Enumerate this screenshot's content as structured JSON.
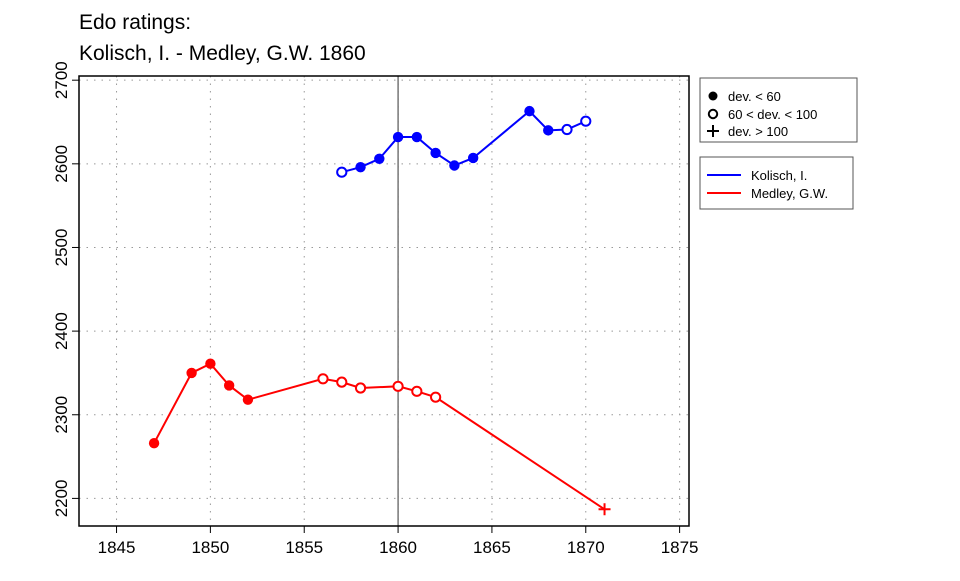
{
  "chart_data": {
    "type": "line",
    "title": [
      "Edo ratings:",
      "Kolisch, I. - Medley, G.W. 1860"
    ],
    "xlabel": "",
    "ylabel": "",
    "xlim": [
      1843,
      1875.5
    ],
    "ylim": [
      2167,
      2705
    ],
    "xticks": [
      1845,
      1850,
      1855,
      1860,
      1865,
      1870,
      1875
    ],
    "yticks": [
      2200,
      2300,
      2400,
      2500,
      2600,
      2700
    ],
    "grid": true,
    "vline": 1860,
    "legend_markers": {
      "placement": "top-right outside",
      "items": [
        {
          "symbol": "filled",
          "label": "dev. < 60"
        },
        {
          "symbol": "open",
          "label": "60 < dev. < 100"
        },
        {
          "symbol": "plus",
          "label": "dev. > 100"
        }
      ]
    },
    "legend_series": {
      "placement": "right outside",
      "items": [
        {
          "label": "Kolisch, I.",
          "color": "#0000ff"
        },
        {
          "label": "Medley, G.W.",
          "color": "#ff0000"
        }
      ]
    },
    "series": [
      {
        "name": "Kolisch, I.",
        "color": "#0000ff",
        "x": [
          1857,
          1858,
          1859,
          1860,
          1861,
          1862,
          1863,
          1864,
          1867,
          1868,
          1869,
          1870
        ],
        "y": [
          2590,
          2596,
          2606,
          2632,
          2632,
          2613,
          2598,
          2607,
          2663,
          2640,
          2641,
          2651
        ],
        "marker": [
          "open",
          "filled",
          "filled",
          "filled",
          "filled",
          "filled",
          "filled",
          "filled",
          "filled",
          "filled",
          "open",
          "open"
        ]
      },
      {
        "name": "Medley, G.W.",
        "color": "#ff0000",
        "x": [
          1847,
          1849,
          1850,
          1851,
          1852,
          1856,
          1857,
          1858,
          1860,
          1861,
          1862,
          1871
        ],
        "y": [
          2266,
          2350,
          2361,
          2335,
          2318,
          2343,
          2339,
          2332,
          2334,
          2328,
          2321,
          2187
        ],
        "marker": [
          "filled",
          "filled",
          "filled",
          "filled",
          "filled",
          "open",
          "open",
          "open",
          "open",
          "open",
          "open",
          "plus"
        ]
      }
    ]
  }
}
